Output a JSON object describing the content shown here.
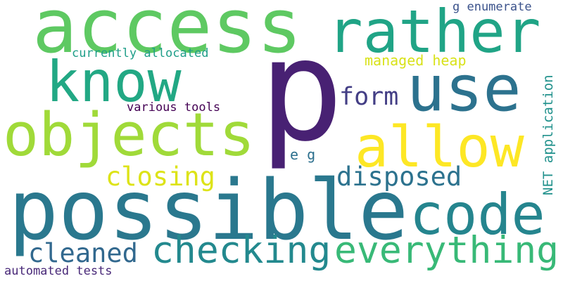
{
  "words": [
    {
      "text": "p",
      "color": "#482173"
    },
    {
      "text": "access",
      "color": "#5ec962"
    },
    {
      "text": "rather",
      "color": "#20a486"
    },
    {
      "text": "possible",
      "color": "#2a788e"
    },
    {
      "text": "code",
      "color": "#25858e"
    },
    {
      "text": "objects",
      "color": "#a0da39"
    },
    {
      "text": "allow",
      "color": "#fde725"
    },
    {
      "text": "use",
      "color": "#2c728e"
    },
    {
      "text": "know",
      "color": "#22a884"
    },
    {
      "text": "everything",
      "color": "#38b977"
    },
    {
      "text": "checking",
      "color": "#23898e"
    },
    {
      "text": "closing",
      "color": "#dde318"
    },
    {
      "text": "disposed",
      "color": "#2c728e"
    },
    {
      "text": "cleaned",
      "color": "#31688e"
    },
    {
      "text": "form",
      "color": "#433e85"
    },
    {
      "text": "managed heap",
      "color": "#d8e219"
    },
    {
      "text": "currently allocated",
      "color": "#1f9e89"
    },
    {
      "text": "g enumerate",
      "color": "#3b528b"
    },
    {
      "text": "various tools",
      "color": "#440154"
    },
    {
      "text": "e g",
      "color": "#2d708e"
    },
    {
      "text": "NET application",
      "color": "#21918c"
    },
    {
      "text": "automated tests",
      "color": "#482878"
    }
  ]
}
